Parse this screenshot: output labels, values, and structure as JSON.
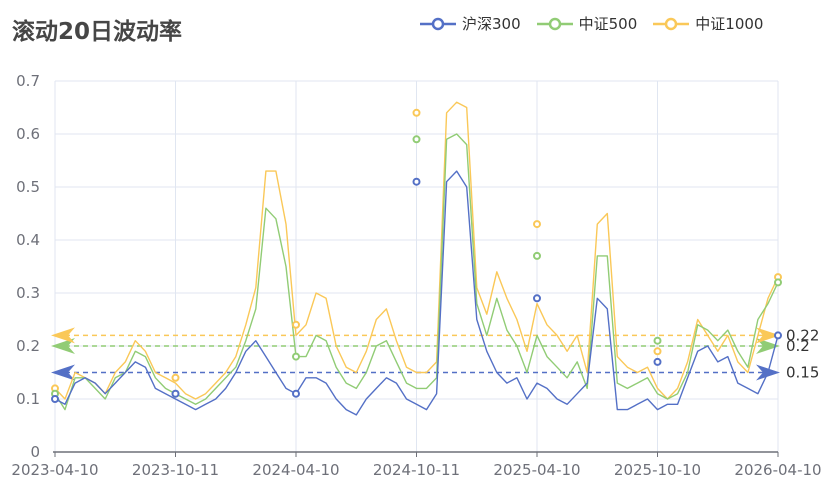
{
  "title": "滚动20日波动率",
  "legend": [
    {
      "label": "沪深300",
      "color": "#5470c6"
    },
    {
      "label": "中证500",
      "color": "#91cc75"
    },
    {
      "label": "中证1000",
      "color": "#fac858"
    }
  ],
  "chart_data": {
    "type": "line",
    "title": "滚动20日波动率",
    "xlabel": "",
    "ylabel": "",
    "ylim": [
      0,
      0.7
    ],
    "yticks": [
      "0",
      "0.1",
      "0.2",
      "0.3",
      "0.4",
      "0.5",
      "0.6",
      "0.7"
    ],
    "xticks": [
      "2023-04-10",
      "2023-10-11",
      "2024-04-10",
      "2024-10-11",
      "2025-04-10",
      "2025-10-10",
      "2026-04-10"
    ],
    "grid": true,
    "legend_position": "top-right",
    "x_range": [
      "2023-04-10",
      "2026-04-10"
    ],
    "sample_note": "73 approx. evenly spaced samples (~biweekly) read off the plot",
    "series": [
      {
        "name": "沪深300",
        "color": "#5470c6",
        "values": [
          0.1,
          0.09,
          0.13,
          0.14,
          0.13,
          0.11,
          0.13,
          0.15,
          0.17,
          0.16,
          0.12,
          0.11,
          0.1,
          0.09,
          0.08,
          0.09,
          0.1,
          0.12,
          0.15,
          0.19,
          0.21,
          0.18,
          0.15,
          0.12,
          0.11,
          0.14,
          0.14,
          0.13,
          0.1,
          0.08,
          0.07,
          0.1,
          0.12,
          0.14,
          0.13,
          0.1,
          0.09,
          0.08,
          0.11,
          0.51,
          0.53,
          0.5,
          0.25,
          0.19,
          0.15,
          0.13,
          0.14,
          0.1,
          0.13,
          0.12,
          0.1,
          0.09,
          0.11,
          0.13,
          0.29,
          0.27,
          0.08,
          0.08,
          0.09,
          0.1,
          0.08,
          0.09,
          0.09,
          0.14,
          0.19,
          0.2,
          0.17,
          0.18,
          0.13,
          0.12,
          0.11,
          0.15,
          0.22
        ],
        "markers": [
          {
            "x": "2023-04-10",
            "y": 0.1
          },
          {
            "x": "2023-10-11",
            "y": 0.11
          },
          {
            "x": "2024-04-10",
            "y": 0.11
          },
          {
            "x": "2024-10-11",
            "y": 0.51
          },
          {
            "x": "2025-04-10",
            "y": 0.29
          },
          {
            "x": "2025-10-10",
            "y": 0.17
          },
          {
            "x": "2026-04-10",
            "y": 0.22
          }
        ]
      },
      {
        "name": "中证500",
        "color": "#91cc75",
        "values": [
          0.11,
          0.08,
          0.14,
          0.14,
          0.12,
          0.1,
          0.14,
          0.15,
          0.19,
          0.18,
          0.14,
          0.12,
          0.11,
          0.1,
          0.09,
          0.1,
          0.12,
          0.14,
          0.16,
          0.21,
          0.27,
          0.46,
          0.44,
          0.35,
          0.18,
          0.18,
          0.22,
          0.21,
          0.16,
          0.13,
          0.12,
          0.15,
          0.2,
          0.21,
          0.17,
          0.13,
          0.12,
          0.12,
          0.14,
          0.59,
          0.6,
          0.58,
          0.28,
          0.22,
          0.29,
          0.23,
          0.2,
          0.15,
          0.22,
          0.18,
          0.16,
          0.14,
          0.17,
          0.12,
          0.37,
          0.37,
          0.13,
          0.12,
          0.13,
          0.14,
          0.11,
          0.1,
          0.11,
          0.15,
          0.24,
          0.23,
          0.21,
          0.23,
          0.19,
          0.16,
          0.25,
          0.28,
          0.32
        ],
        "markers": [
          {
            "x": "2023-04-10",
            "y": 0.11
          },
          {
            "x": "2023-10-11",
            "y": 0.11
          },
          {
            "x": "2024-04-10",
            "y": 0.18
          },
          {
            "x": "2024-10-11",
            "y": 0.59
          },
          {
            "x": "2025-04-10",
            "y": 0.37
          },
          {
            "x": "2025-10-10",
            "y": 0.21
          },
          {
            "x": "2026-04-10",
            "y": 0.32
          }
        ]
      },
      {
        "name": "中证1000",
        "color": "#fac858",
        "values": [
          0.12,
          0.1,
          0.15,
          0.14,
          0.13,
          0.11,
          0.15,
          0.17,
          0.21,
          0.19,
          0.15,
          0.14,
          0.13,
          0.11,
          0.1,
          0.11,
          0.13,
          0.15,
          0.18,
          0.24,
          0.31,
          0.53,
          0.53,
          0.43,
          0.22,
          0.24,
          0.3,
          0.29,
          0.2,
          0.16,
          0.15,
          0.19,
          0.25,
          0.27,
          0.21,
          0.16,
          0.15,
          0.15,
          0.17,
          0.64,
          0.66,
          0.65,
          0.31,
          0.26,
          0.34,
          0.29,
          0.25,
          0.19,
          0.28,
          0.24,
          0.22,
          0.19,
          0.22,
          0.15,
          0.43,
          0.45,
          0.18,
          0.16,
          0.15,
          0.16,
          0.12,
          0.1,
          0.12,
          0.17,
          0.25,
          0.22,
          0.19,
          0.22,
          0.17,
          0.15,
          0.22,
          0.29,
          0.33
        ],
        "markers": [
          {
            "x": "2023-04-10",
            "y": 0.12
          },
          {
            "x": "2023-10-11",
            "y": 0.14
          },
          {
            "x": "2024-04-10",
            "y": 0.24
          },
          {
            "x": "2024-10-11",
            "y": 0.64
          },
          {
            "x": "2025-04-10",
            "y": 0.43
          },
          {
            "x": "2025-10-10",
            "y": 0.19
          },
          {
            "x": "2026-04-10",
            "y": 0.33
          }
        ]
      }
    ],
    "mark_lines": [
      {
        "series": "沪深300",
        "value": 0.15,
        "label": "0.15",
        "color": "#5470c6"
      },
      {
        "series": "中证500",
        "value": 0.2,
        "label": "0.2",
        "color": "#91cc75"
      },
      {
        "series": "中证1000",
        "value": 0.22,
        "label": "0.22",
        "color": "#fac858"
      }
    ]
  }
}
